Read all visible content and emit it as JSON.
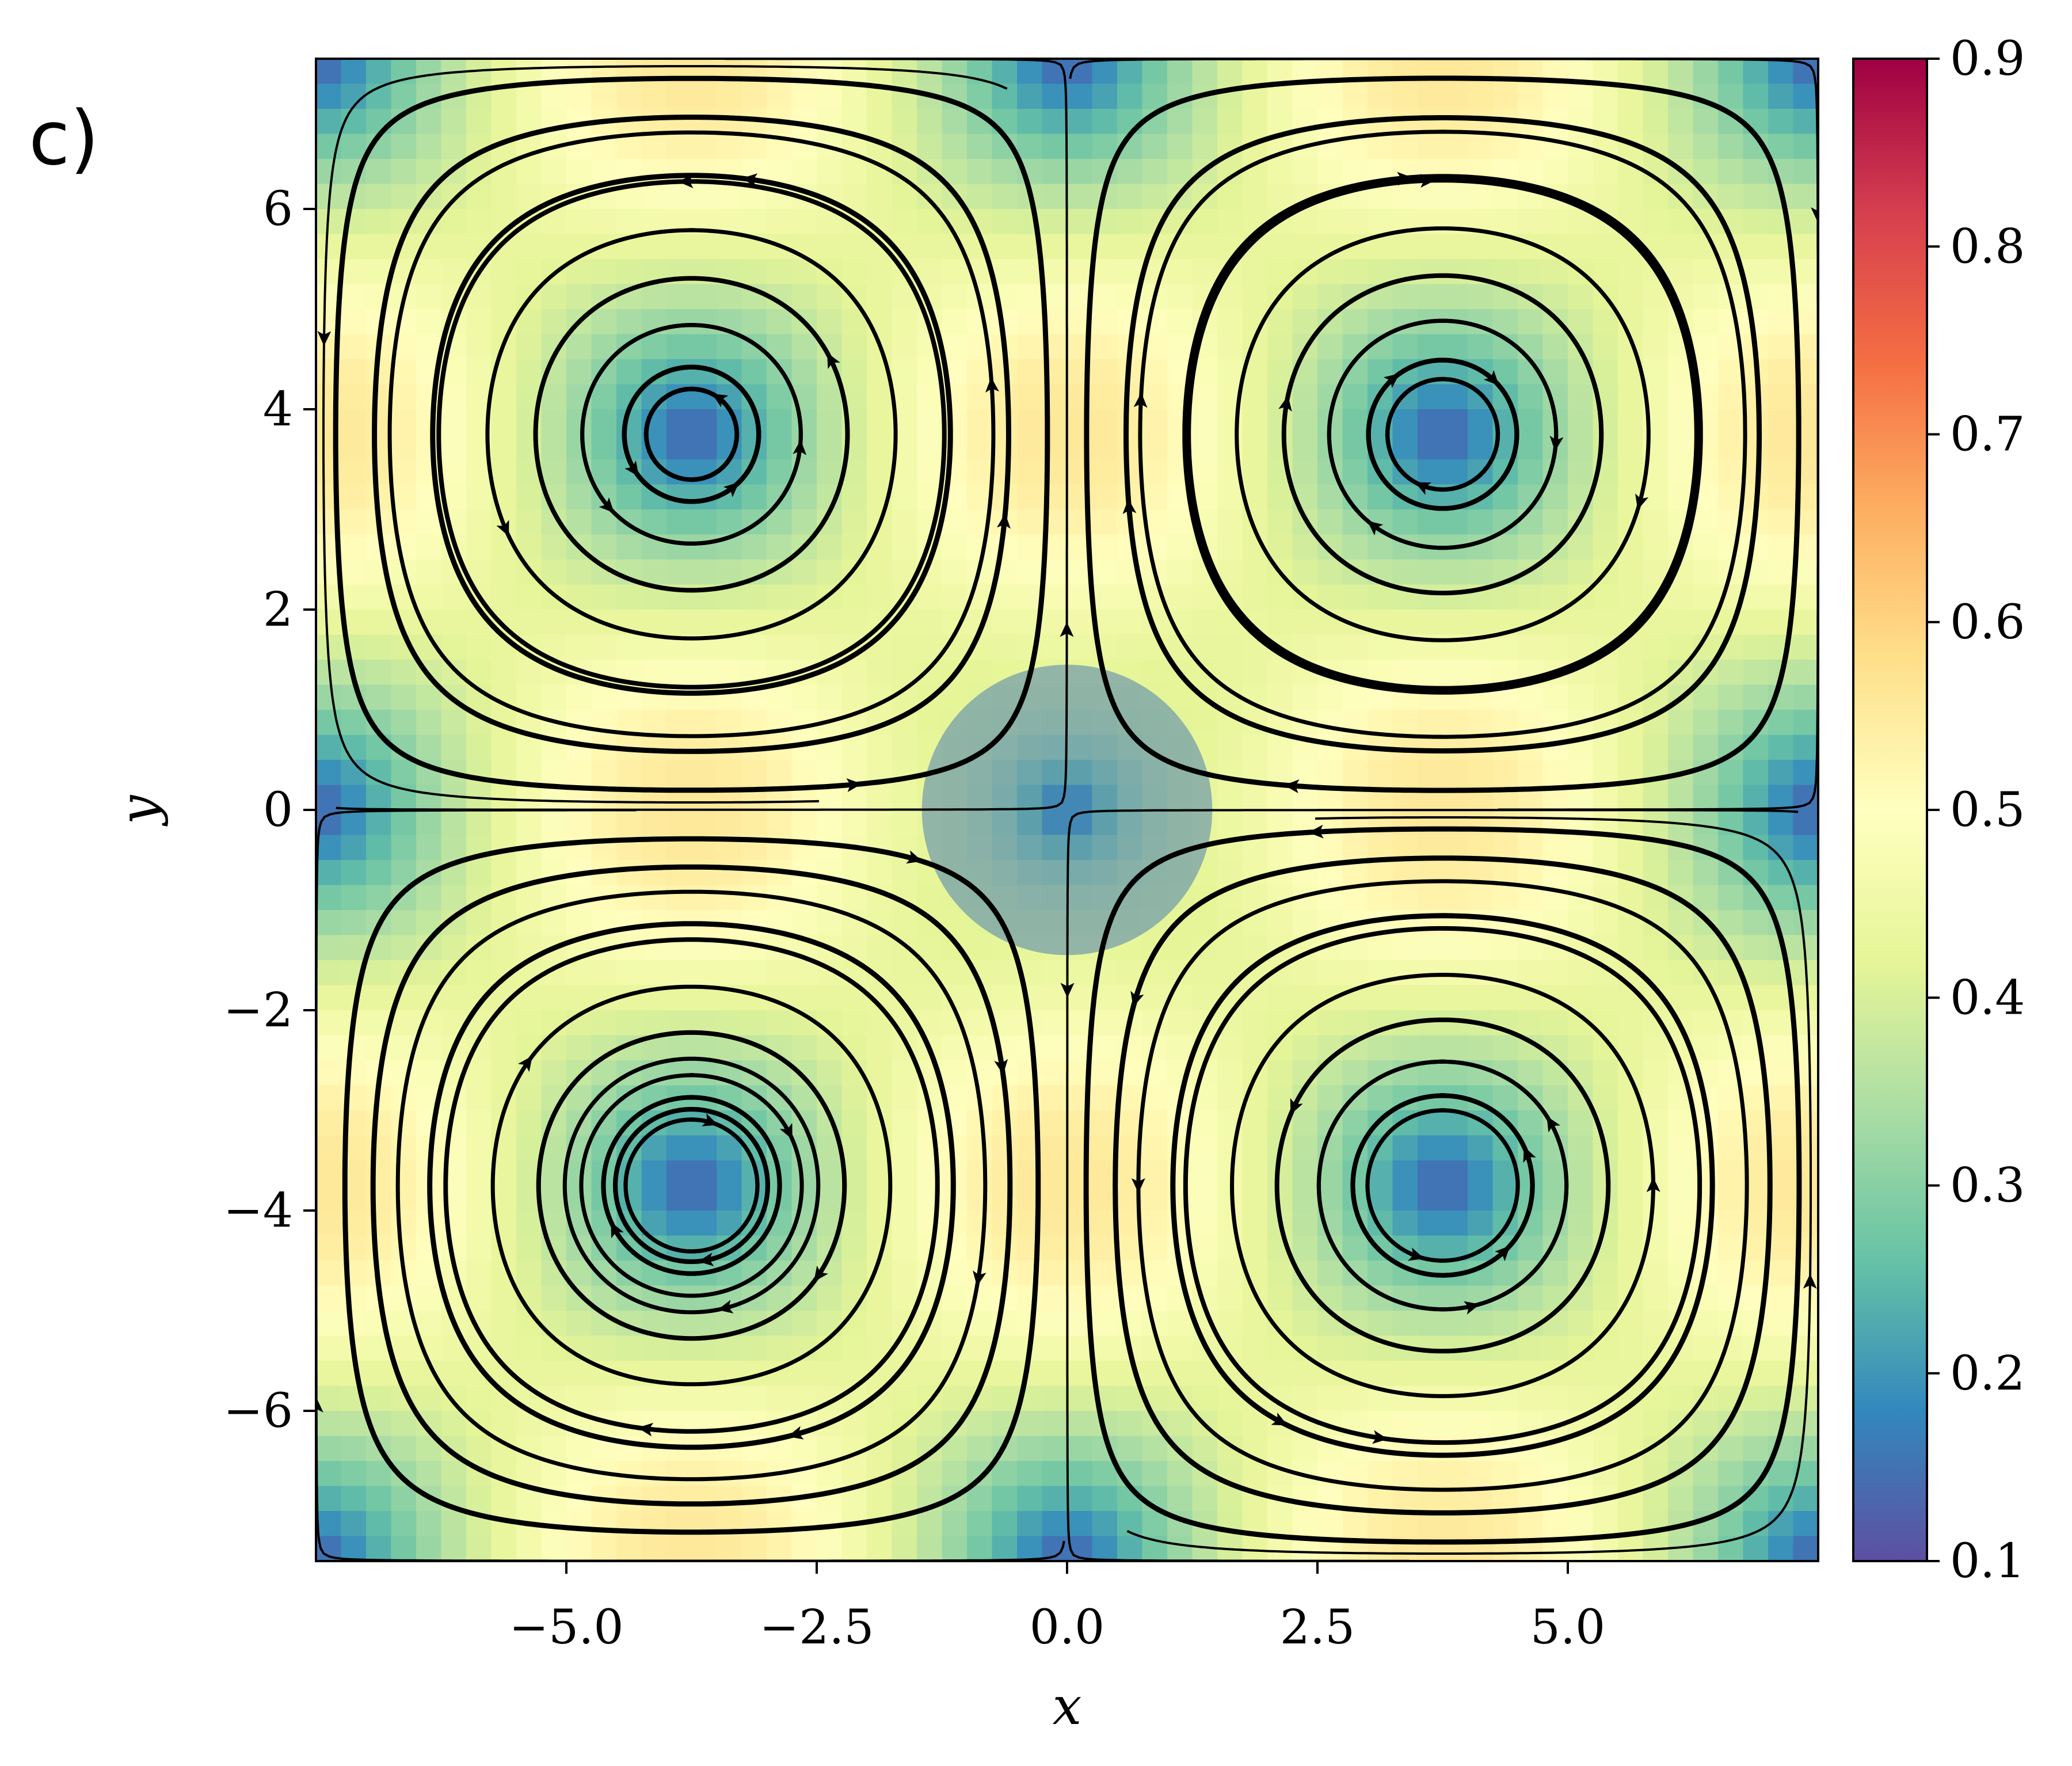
{
  "panel_label": "c)",
  "chart_data": {
    "type": "heatmap",
    "subtype": "streamplot",
    "title": "",
    "xlabel": "x",
    "ylabel": "y",
    "xlim": [
      -7.5,
      7.5
    ],
    "ylim": [
      -7.5,
      7.5
    ],
    "xticks": [
      -5.0,
      -2.5,
      0.0,
      2.5,
      5.0
    ],
    "xtick_labels": [
      "−5.0",
      "−2.5",
      "0.0",
      "2.5",
      "5.0"
    ],
    "yticks": [
      -6,
      -4,
      -2,
      0,
      2,
      4,
      6
    ],
    "ytick_labels": [
      "−6",
      "−4",
      "−2",
      "0",
      "2",
      "4",
      "6"
    ],
    "grid": false,
    "colormap": "Spectral_r",
    "colormap_stops": [
      "#5e4fa2",
      "#3288bd",
      "#66c2a5",
      "#abdda4",
      "#e6f598",
      "#ffffbf",
      "#fee08b",
      "#fdae61",
      "#f46d43",
      "#d53e4f",
      "#9e0142"
    ],
    "colorbar": {
      "range": [
        0.1,
        0.9
      ],
      "ticks": [
        0.1,
        0.2,
        0.3,
        0.4,
        0.5,
        0.6,
        0.7,
        0.8,
        0.9
      ],
      "tick_labels": [
        "0.1",
        "0.2",
        "0.3",
        "0.4",
        "0.5",
        "0.6",
        "0.7",
        "0.8",
        "0.9"
      ],
      "label": ""
    },
    "vortices": [
      {
        "center": [
          -5.0,
          3.3
        ],
        "rotation": "counterclockwise"
      },
      {
        "center": [
          5.0,
          3.2
        ],
        "rotation": "clockwise"
      },
      {
        "center": [
          -5.1,
          -3.1
        ],
        "rotation": "clockwise"
      },
      {
        "center": [
          5.0,
          -3.0
        ],
        "rotation": "counterclockwise"
      }
    ],
    "stagnation_point": [
      0.0,
      0.0
    ],
    "highlight_disk": {
      "center": [
        0.0,
        0.0
      ],
      "radius": 1.45,
      "color": "#4a7fb0"
    },
    "streamline_color": "#000000"
  }
}
